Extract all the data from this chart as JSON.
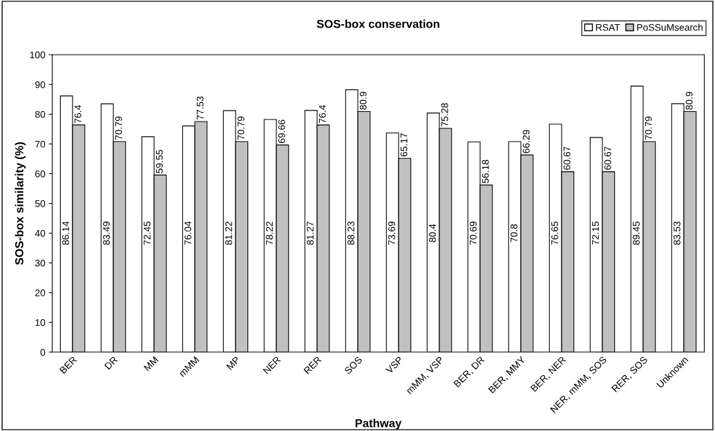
{
  "chart_data": {
    "type": "bar",
    "title": "SOS-box conservation",
    "xlabel": "Pathway",
    "ylabel": "SOS-box similarity (%)",
    "categories": [
      "BER",
      "DR",
      "MM",
      "mMM",
      "MP",
      "NER",
      "RER",
      "SOS",
      "VSP",
      "mMM, VSP",
      "BER, DR",
      "BER, MMY",
      "BER, NER",
      "NER, mMM, SOS",
      "RER, SOS",
      "Unknown"
    ],
    "series": [
      {
        "name": "RSAT",
        "color": "#ffffff",
        "values": [
          86.14,
          83.49,
          72.45,
          76.04,
          81.22,
          78.22,
          81.27,
          88.23,
          73.69,
          80.4,
          70.69,
          70.8,
          76.65,
          72.15,
          89.45,
          83.53
        ]
      },
      {
        "name": "PoSSuMsearch",
        "color": "#c0c0c0",
        "values": [
          76.4,
          70.79,
          59.55,
          77.53,
          70.79,
          69.66,
          76.4,
          80.9,
          65.17,
          75.28,
          56.18,
          66.29,
          60.67,
          60.67,
          70.79,
          80.9
        ]
      }
    ],
    "ylim": [
      0,
      100
    ],
    "yticks": [
      0,
      10,
      20,
      30,
      40,
      50,
      60,
      70,
      80,
      90,
      100
    ],
    "data_labels": true,
    "legend": "top right",
    "grid": false
  }
}
